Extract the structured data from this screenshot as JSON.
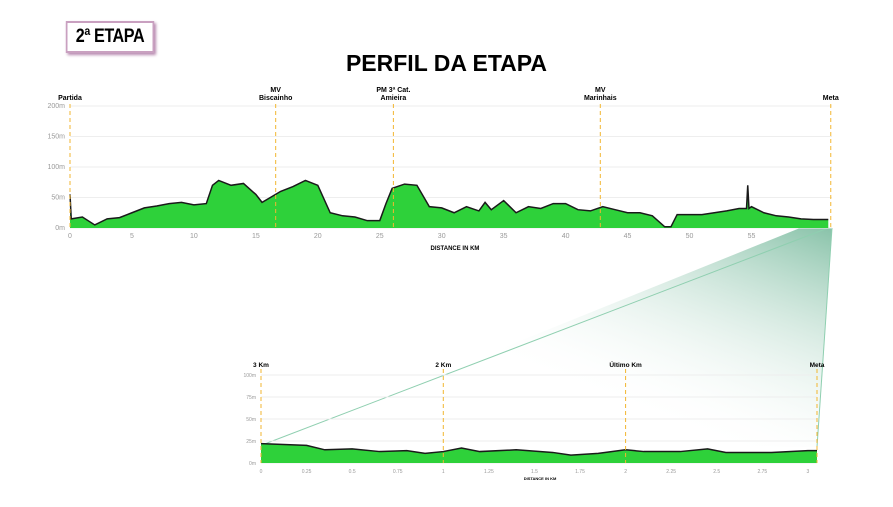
{
  "badge": "2ª ETAPA",
  "title": "PERFIL DA ETAPA",
  "colors": {
    "fill": "#2ed13a",
    "line": "#1a1a1a",
    "marker": "#f2b630",
    "zoom": "#8fcfb0"
  },
  "chart_data": [
    {
      "type": "area",
      "title": "PERFIL DA ETAPA",
      "xlabel": "DISTANCE IN KM",
      "ylabel": "",
      "xlim": [
        0,
        61.5
      ],
      "ylim": [
        0,
        200
      ],
      "xticks": [
        "0",
        "5",
        "10",
        "15",
        "20",
        "25",
        "30",
        "35",
        "40",
        "45",
        "50",
        "55"
      ],
      "xtick_values": [
        0,
        5,
        10,
        15,
        20,
        25,
        30,
        35,
        40,
        45,
        50,
        55
      ],
      "yticks": [
        "0m",
        "50m",
        "100m",
        "150m",
        "200m"
      ],
      "ytick_values": [
        0,
        50,
        100,
        150,
        200
      ],
      "markers": [
        {
          "km": 0,
          "label": "Partida"
        },
        {
          "km": 16.6,
          "label": "MV\nBiscainho"
        },
        {
          "km": 26.1,
          "label": "PM 3ª Cat.\nAmieira"
        },
        {
          "km": 42.8,
          "label": "MV\nMarinhais"
        },
        {
          "km": 61.4,
          "label": "Meta"
        }
      ],
      "x": [
        0,
        0.1,
        1,
        2,
        3,
        4,
        5,
        6,
        7,
        8,
        9,
        10,
        11,
        11.5,
        12,
        13,
        14,
        15,
        15.5,
        16,
        17,
        18,
        19,
        20,
        21,
        22,
        23,
        24,
        25,
        25.5,
        26,
        27,
        28,
        29,
        30,
        31,
        32,
        33,
        33.5,
        34,
        35,
        36,
        37,
        38,
        39,
        40,
        41,
        42,
        43,
        44,
        45,
        46,
        47,
        48,
        48.5,
        49,
        50,
        51,
        52,
        53,
        54,
        54.6,
        54.7,
        54.8,
        55,
        56,
        57,
        58,
        59,
        60,
        61.2
      ],
      "y": [
        55,
        15,
        18,
        5,
        15,
        17,
        25,
        33,
        36,
        40,
        42,
        38,
        40,
        70,
        78,
        70,
        73,
        55,
        42,
        48,
        60,
        68,
        78,
        70,
        25,
        20,
        18,
        12,
        12,
        40,
        65,
        72,
        70,
        35,
        33,
        25,
        35,
        28,
        42,
        30,
        45,
        25,
        35,
        32,
        40,
        40,
        30,
        28,
        35,
        30,
        25,
        25,
        20,
        2,
        2,
        22,
        22,
        22,
        25,
        28,
        32,
        32,
        70,
        32,
        35,
        25,
        20,
        18,
        15,
        14,
        14
      ]
    },
    {
      "type": "area",
      "title": "",
      "xlabel": "DISTANCE IN KM",
      "ylabel": "",
      "xlim": [
        0,
        3.05
      ],
      "ylim": [
        0,
        100
      ],
      "xticks": [
        "0",
        "0.25",
        "0.5",
        "0.75",
        "1",
        "1.25",
        "1.5",
        "1.75",
        "2",
        "2.25",
        "2.5",
        "2.75",
        "3"
      ],
      "xtick_values": [
        0,
        0.25,
        0.5,
        0.75,
        1,
        1.25,
        1.5,
        1.75,
        2,
        2.25,
        2.5,
        2.75,
        3
      ],
      "yticks": [
        "0m",
        "25m",
        "50m",
        "75m",
        "100m"
      ],
      "ytick_values": [
        0,
        25,
        50,
        75,
        100
      ],
      "markers": [
        {
          "km": 0,
          "label": "3 Km"
        },
        {
          "km": 1,
          "label": "2 Km"
        },
        {
          "km": 2,
          "label": "Último Km"
        },
        {
          "km": 3.05,
          "label": "Meta"
        }
      ],
      "x": [
        0,
        0.25,
        0.35,
        0.5,
        0.65,
        0.8,
        0.9,
        1,
        1.1,
        1.2,
        1.4,
        1.6,
        1.7,
        1.85,
        2,
        2.1,
        2.3,
        2.45,
        2.55,
        2.8,
        3,
        3.05
      ],
      "y": [
        22,
        20,
        15,
        16,
        13,
        14,
        11,
        13,
        17,
        13,
        15,
        12,
        9,
        11,
        15,
        13,
        13,
        16,
        12,
        12,
        14,
        14
      ]
    }
  ]
}
